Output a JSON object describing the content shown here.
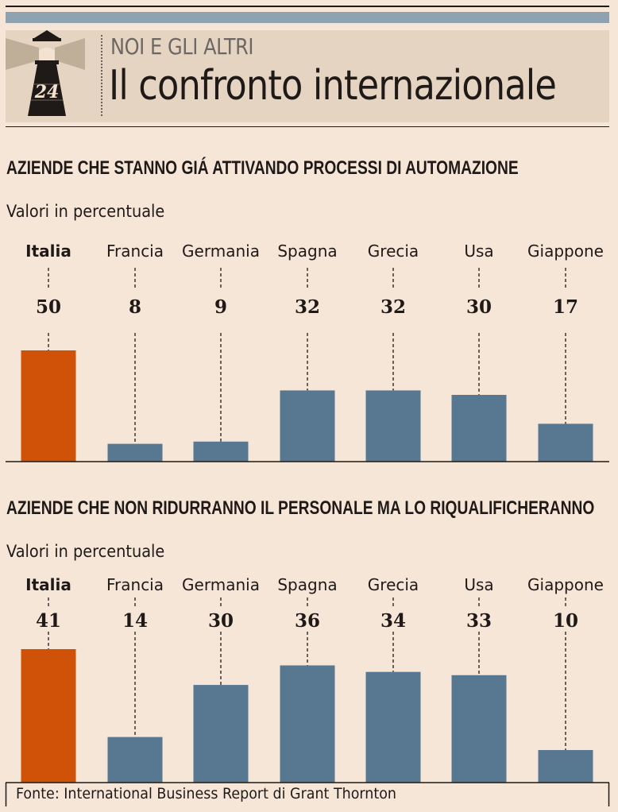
{
  "header": {
    "logo_text": "24",
    "kicker": "NOI E GLI ALTRI",
    "title": "Il confronto internazionale"
  },
  "colors": {
    "highlight": "#d05108",
    "bar": "#587891",
    "band": "#8ea3af",
    "background": "#f5e6d7",
    "header_bg": "#e5d4c1"
  },
  "chart_data": [
    {
      "type": "bar",
      "title": "AZIENDE CHE STANNO GIÁ ATTIVANDO PROCESSI DI AUTOMAZIONE",
      "subtitle": "Valori in percentuale",
      "categories": [
        "Italia",
        "Francia",
        "Germania",
        "Spagna",
        "Grecia",
        "Usa",
        "Giappone"
      ],
      "values": [
        50,
        8,
        9,
        32,
        32,
        30,
        17
      ],
      "highlight": "Italia",
      "ylim": [
        0,
        50
      ],
      "grid": false
    },
    {
      "type": "bar",
      "title": "AZIENDE CHE NON RIDURRANNO IL PERSONALE MA LO RIQUALIFICHERANNO",
      "subtitle": "Valori in percentuale",
      "categories": [
        "Italia",
        "Francia",
        "Germania",
        "Spagna",
        "Grecia",
        "Usa",
        "Giappone"
      ],
      "values": [
        41,
        14,
        30,
        36,
        34,
        33,
        10
      ],
      "highlight": "Italia",
      "ylim": [
        0,
        41
      ],
      "grid": false
    }
  ],
  "source": "Fonte: International Business Report di Grant Thornton"
}
